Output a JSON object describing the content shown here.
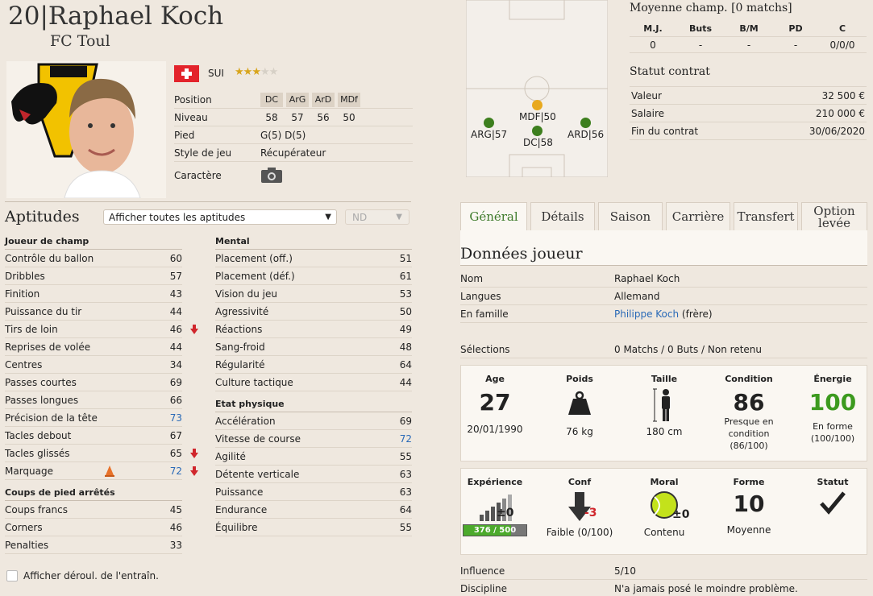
{
  "player": {
    "number": "20|",
    "name": "Raphael Koch",
    "club": "FC Toul",
    "nationality": "SUI",
    "stars": 3,
    "stars_max": 5,
    "flag_color": "#e3232b"
  },
  "info": {
    "position_label": "Position",
    "positions": [
      "DC",
      "ArG",
      "ArD",
      "MDf"
    ],
    "level_label": "Niveau",
    "levels": [
      "58",
      "57",
      "56",
      "50"
    ],
    "foot_label": "Pied",
    "foot_value": "G(5) D(5)",
    "style_label": "Style de jeu",
    "style_value": "Récupérateur",
    "character_label": "Caractère"
  },
  "aptitudes": {
    "title": "Aptitudes",
    "filter_select": "Afficher toutes les aptitudes",
    "nd_select": "ND",
    "field_group": "Joueur de champ",
    "field": [
      {
        "name": "Contrôle du ballon",
        "value": "60"
      },
      {
        "name": "Dribbles",
        "value": "57"
      },
      {
        "name": "Finition",
        "value": "43"
      },
      {
        "name": "Puissance du tir",
        "value": "44"
      },
      {
        "name": "Tirs de loin",
        "value": "46"
      },
      {
        "name": "Reprises de volée",
        "value": "44"
      },
      {
        "name": "Centres",
        "value": "34"
      },
      {
        "name": "Passes courtes",
        "value": "69"
      },
      {
        "name": "Passes longues",
        "value": "66"
      },
      {
        "name": "Précision de la tête",
        "value": "73"
      },
      {
        "name": "Tacles debout",
        "value": "67"
      },
      {
        "name": "Tacles glissés",
        "value": "65"
      },
      {
        "name": "Marquage",
        "value": "72"
      }
    ],
    "setpiece_group": "Coups de pied arrêtés",
    "setpiece": [
      {
        "name": "Coups francs",
        "value": "45"
      },
      {
        "name": "Corners",
        "value": "46"
      },
      {
        "name": "Penalties",
        "value": "33"
      }
    ],
    "mental_group": "Mental",
    "mental": [
      {
        "name": "Placement (off.)",
        "value": "51"
      },
      {
        "name": "Placement (déf.)",
        "value": "61"
      },
      {
        "name": "Vision du jeu",
        "value": "53"
      },
      {
        "name": "Agressivité",
        "value": "50"
      },
      {
        "name": "Réactions",
        "value": "49"
      },
      {
        "name": "Sang-froid",
        "value": "48"
      },
      {
        "name": "Régularité",
        "value": "64"
      },
      {
        "name": "Culture tactique",
        "value": "44"
      }
    ],
    "physical_group": "Etat physique",
    "physical": [
      {
        "name": "Accélération",
        "value": "69"
      },
      {
        "name": "Vitesse de course",
        "value": "72"
      },
      {
        "name": "Agilité",
        "value": "55"
      },
      {
        "name": "Détente verticale",
        "value": "63"
      },
      {
        "name": "Puissance",
        "value": "63"
      },
      {
        "name": "Endurance",
        "value": "64"
      },
      {
        "name": "Équilibre",
        "value": "55"
      }
    ],
    "training_checkbox": "Afficher déroul. de l'entraîn."
  },
  "pitch": {
    "labels": [
      "MDF|50",
      "ARG|57",
      "DC|58",
      "ARD|56"
    ],
    "colors": {
      "primary": "#e8a91e",
      "secondary": "#3d7f1e"
    }
  },
  "season": {
    "title": "Moyenne champ. [0 matchs]",
    "headers": [
      "M.J.",
      "Buts",
      "B/M",
      "PD",
      "C"
    ],
    "values": [
      "0",
      "-",
      "-",
      "-",
      "0/0/0"
    ]
  },
  "contract": {
    "title": "Statut contrat",
    "rows": [
      {
        "label": "Valeur",
        "value": "32 500 €"
      },
      {
        "label": "Salaire",
        "value": "210 000 €"
      },
      {
        "label": "Fin du contrat",
        "value": "30/06/2020"
      }
    ]
  },
  "tabs": [
    "Général",
    "Détails",
    "Saison",
    "Carrière",
    "Transfert",
    "Option levée"
  ],
  "data": {
    "title": "Données joueur",
    "name_label": "Nom",
    "name_value": "Raphael Koch",
    "lang_label": "Langues",
    "lang_value": "Allemand",
    "family_label": "En famille",
    "family_link": "Philippe Koch",
    "family_rel": "(frère)",
    "caps_label": "Sélections",
    "caps_value": "0 Matchs / 0 Buts / Non retenu"
  },
  "stats1": {
    "age_h": "Age",
    "age": "27",
    "dob": "20/01/1990",
    "poids_h": "Poids",
    "poids": "76 kg",
    "taille_h": "Taille",
    "taille": "180 cm",
    "cond_h": "Condition",
    "cond": "86",
    "cond_sub": "Presque en condition (86/100)",
    "energy_h": "Énergie",
    "energy": "100",
    "energy_sub": "En forme (100/100)",
    "energy_color": "#3c9a1e"
  },
  "stats2": {
    "exp_h": "Expérience",
    "exp_delta": "±0",
    "exp_bar": "376 / 500",
    "exp_fraction": 0.752,
    "conf_h": "Conf",
    "conf_delta": "-3",
    "conf_text": "Faible (0/100)",
    "moral_h": "Moral",
    "moral_delta": "±0",
    "moral_text": "Contenu",
    "forme_h": "Forme",
    "forme": "10",
    "forme_text": "Moyenne",
    "statut_h": "Statut"
  },
  "extra": {
    "influence_label": "Influence",
    "influence_value": "5/10",
    "discipline_label": "Discipline",
    "discipline_value": "N'a jamais posé le moindre problème."
  }
}
